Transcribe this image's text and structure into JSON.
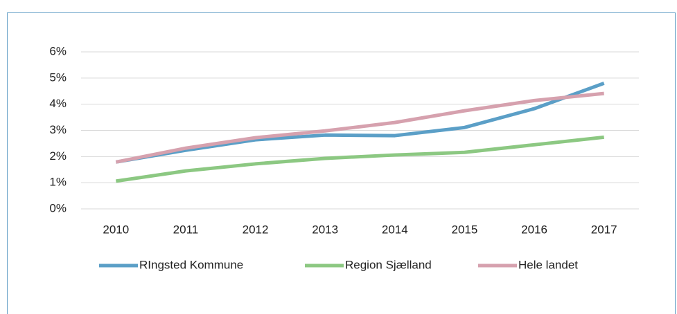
{
  "chart_data": {
    "type": "line",
    "categories": [
      "2010",
      "2011",
      "2012",
      "2013",
      "2014",
      "2015",
      "2016",
      "2017"
    ],
    "series": [
      {
        "name": "RIngsted Kommune",
        "color": "#5b9fc7",
        "values": [
          1.79,
          2.24,
          2.64,
          2.82,
          2.8,
          3.11,
          3.83,
          4.8
        ]
      },
      {
        "name": "Region Sjælland",
        "color": "#8cc882",
        "values": [
          1.06,
          1.45,
          1.72,
          1.93,
          2.06,
          2.16,
          2.45,
          2.74
        ]
      },
      {
        "name": "Hele landet",
        "color": "#d6a1ae",
        "values": [
          1.79,
          2.32,
          2.72,
          2.98,
          3.3,
          3.75,
          4.14,
          4.41
        ]
      }
    ],
    "ylim": [
      0,
      6
    ],
    "yticks": [
      {
        "value": 0,
        "label": "0%"
      },
      {
        "value": 1,
        "label": "1%"
      },
      {
        "value": 2,
        "label": "2%"
      },
      {
        "value": 3,
        "label": "3%"
      },
      {
        "value": 4,
        "label": "4%"
      },
      {
        "value": 5,
        "label": "5%"
      },
      {
        "value": 6,
        "label": "6%"
      }
    ],
    "grid": true,
    "legend": "bottom"
  }
}
